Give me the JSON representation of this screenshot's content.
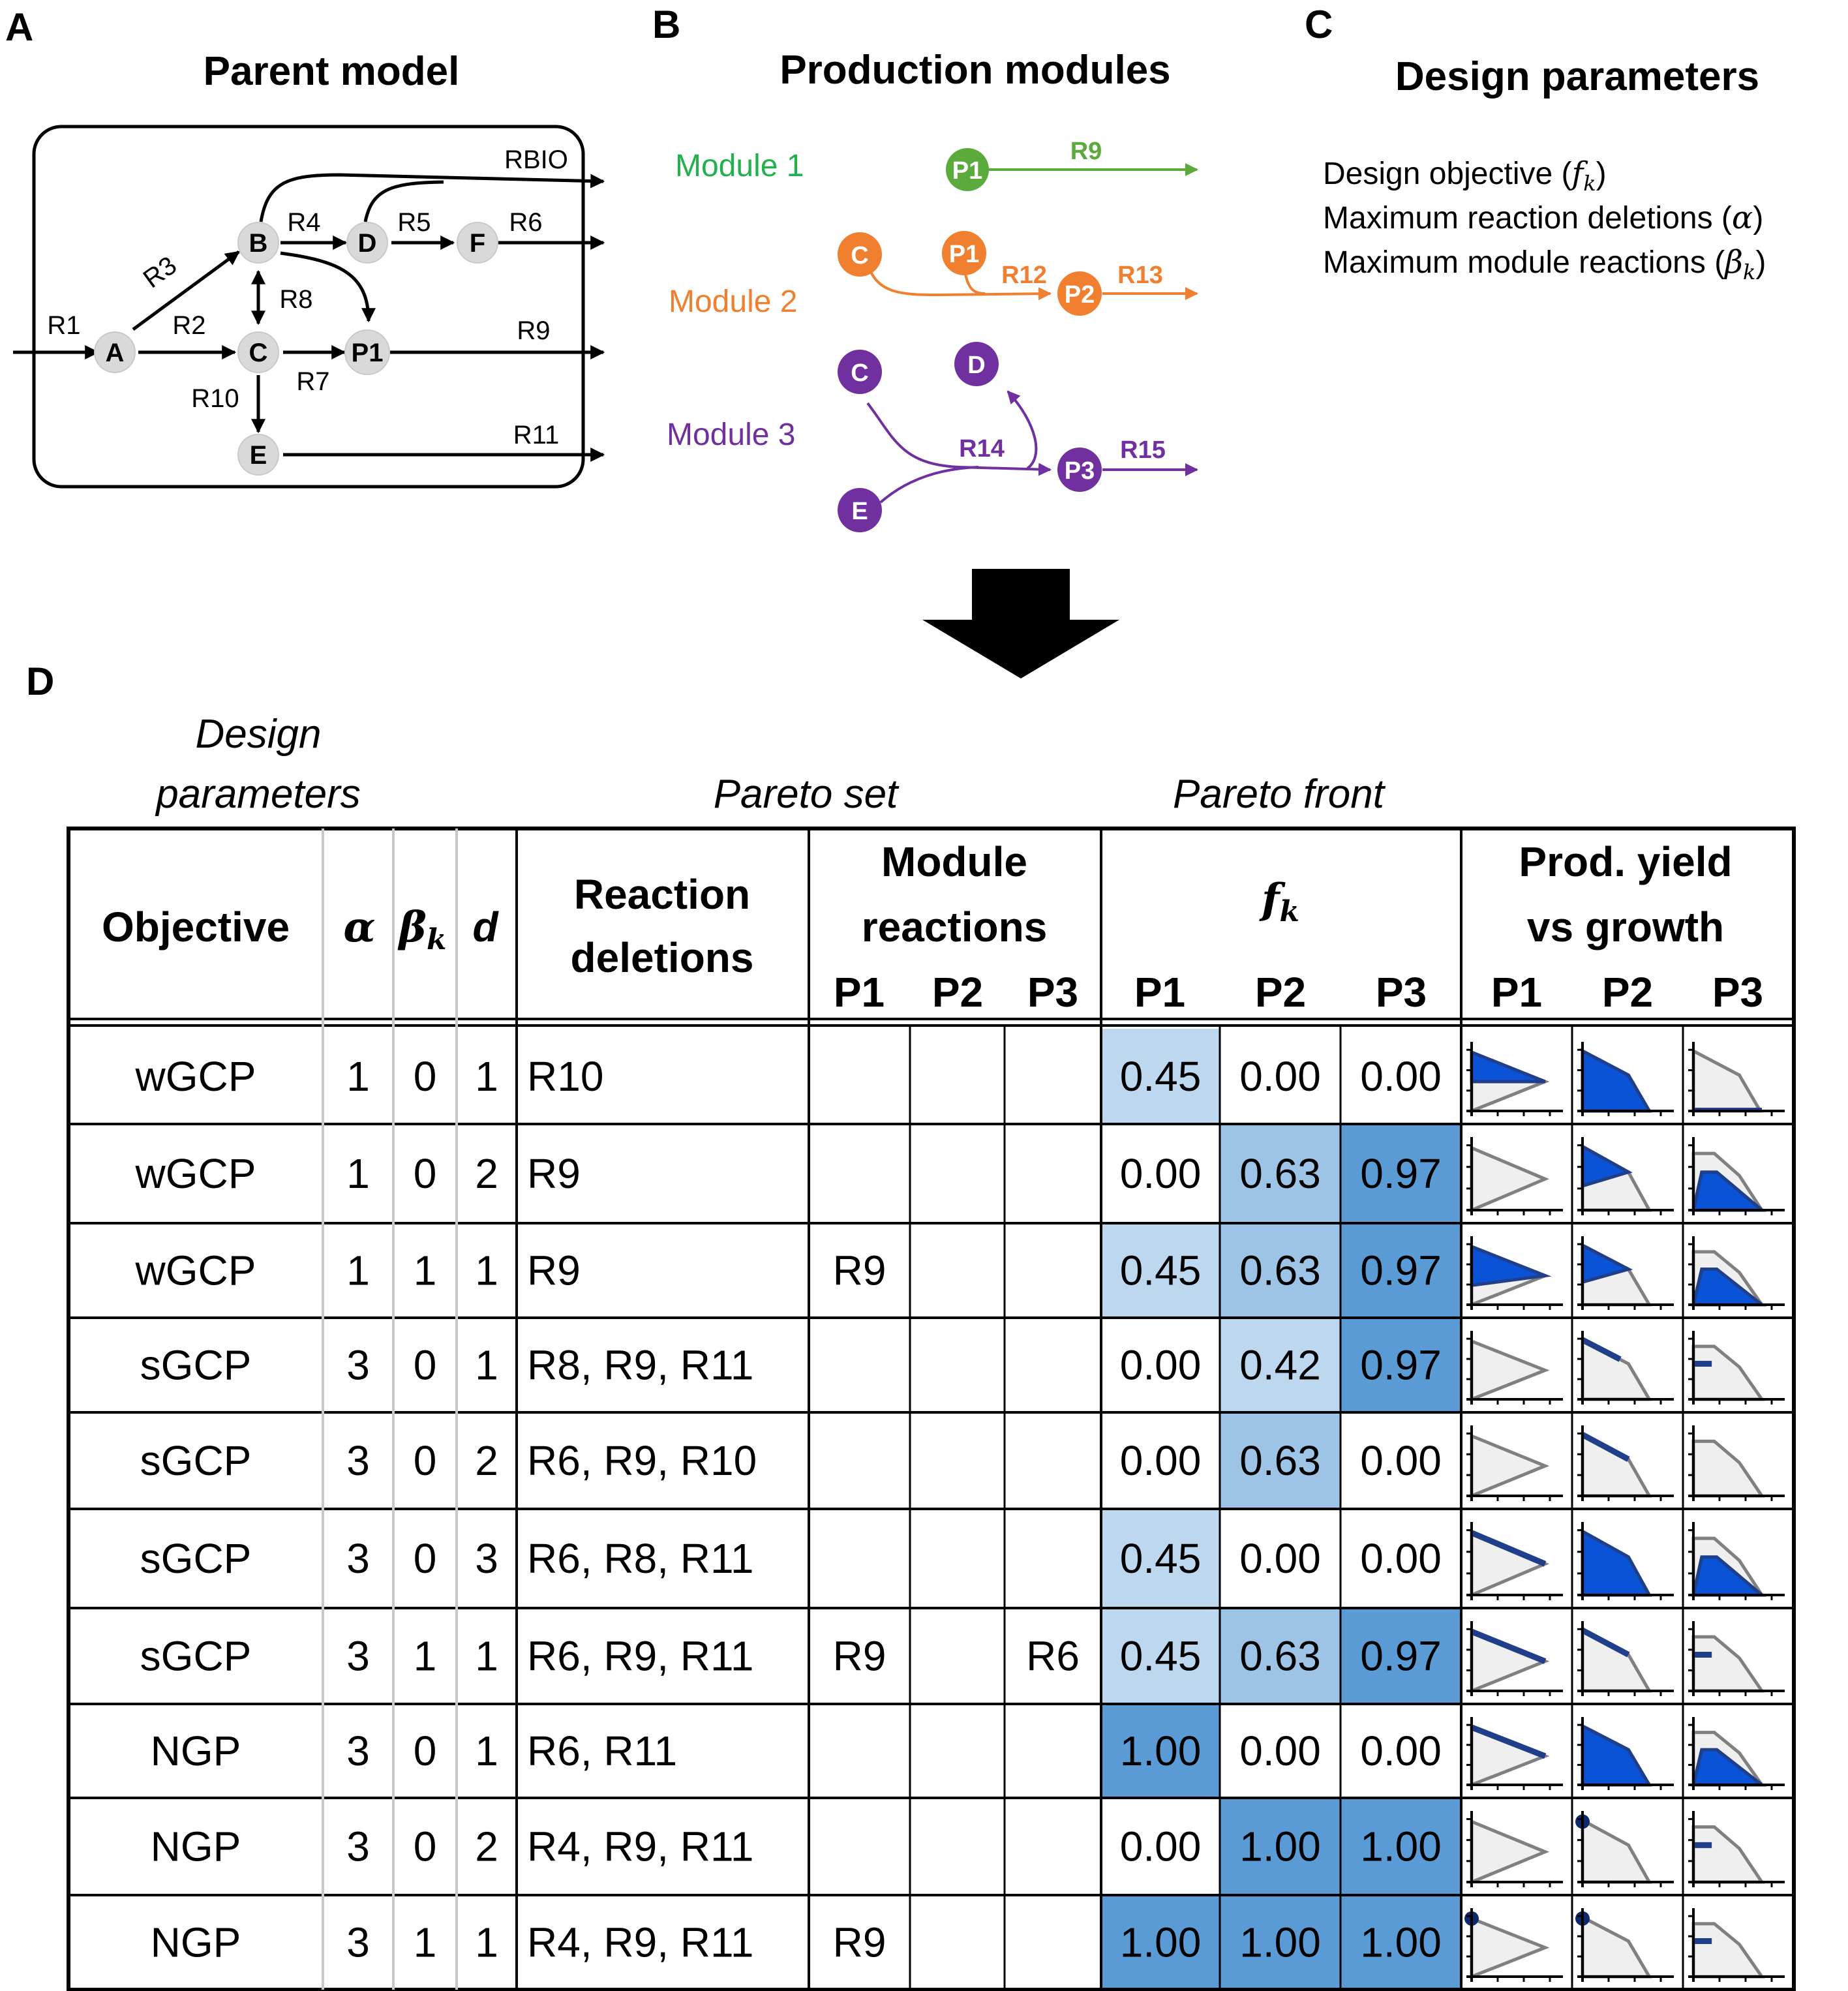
{
  "panelA": {
    "letter": "A",
    "title": "Parent model",
    "nodes": [
      "A",
      "B",
      "C",
      "D",
      "F",
      "P1",
      "E"
    ],
    "reactions": {
      "R1": "R1",
      "R2": "R2",
      "R3": "R3",
      "R4": "R4",
      "R5": "R5",
      "R6": "R6",
      "R7": "R7",
      "R8": "R8",
      "R9": "R9",
      "R10": "R10",
      "R11": "R11",
      "RBIO": "RBIO"
    }
  },
  "panelB": {
    "letter": "B",
    "title": "Production modules",
    "module1": {
      "label": "Module 1",
      "color": "#5aab3b",
      "nodes": [
        "P1"
      ],
      "reactions": [
        "R9"
      ]
    },
    "module2": {
      "label": "Module 2",
      "color": "#f07f30",
      "nodes": [
        "C",
        "P1",
        "P2"
      ],
      "reactions": [
        "R12",
        "R13"
      ]
    },
    "module3": {
      "label": "Module 3",
      "color": "#7030a0",
      "nodes": [
        "C",
        "D",
        "E",
        "P3"
      ],
      "reactions": [
        "R14",
        "R15"
      ]
    }
  },
  "panelC": {
    "letter": "C",
    "title": "Design parameters",
    "lines": {
      "objective": "Design objective (",
      "objective_sym": "f",
      "objective_sub": "k",
      "deletions": "Maximum reaction deletions (",
      "deletions_sym": "α",
      "module": "Maximum module reactions (",
      "module_sym": "β",
      "module_sub": "k",
      "close": ")"
    }
  },
  "panelD": {
    "letter": "D",
    "groups": {
      "design": "Design",
      "design2": "parameters",
      "pareto_set": "Pareto set",
      "pareto_front": "Pareto front"
    },
    "headers": {
      "objective": "Objective",
      "alpha": "α",
      "beta": "β",
      "beta_sub": "k",
      "d": "d",
      "deletions1": "Reaction",
      "deletions2": "deletions",
      "module1": "Module",
      "module2": "reactions",
      "fk": "f",
      "fk_sub": "k",
      "yield1": "Prod. yield",
      "yield2": "vs  growth",
      "p1": "P1",
      "p2": "P2",
      "p3": "P3"
    },
    "colors": {
      "light": "#bdd7ee",
      "mid": "#9dc3e6",
      "dark": "#5b9bd5",
      "fill_blue": "#0a52d6",
      "fill_grey": "#efefef"
    },
    "rows": [
      {
        "objective": "wGCP",
        "alpha": "1",
        "beta": "0",
        "d": "1",
        "deletions": "R10",
        "modules": [
          "",
          "",
          ""
        ],
        "f": [
          "0.45",
          "0.00",
          "0.00"
        ]
      },
      {
        "objective": "wGCP",
        "alpha": "1",
        "beta": "0",
        "d": "2",
        "deletions": "R9",
        "modules": [
          "",
          "",
          ""
        ],
        "f": [
          "0.00",
          "0.63",
          "0.97"
        ]
      },
      {
        "objective": "wGCP",
        "alpha": "1",
        "beta": "1",
        "d": "1",
        "deletions": "R9",
        "modules": [
          "R9",
          "",
          ""
        ],
        "f": [
          "0.45",
          "0.63",
          "0.97"
        ]
      },
      {
        "objective": "sGCP",
        "alpha": "3",
        "beta": "0",
        "d": "1",
        "deletions": "R8, R9, R11",
        "modules": [
          "",
          "",
          ""
        ],
        "f": [
          "0.00",
          "0.42",
          "0.97"
        ]
      },
      {
        "objective": "sGCP",
        "alpha": "3",
        "beta": "0",
        "d": "2",
        "deletions": "R6, R9, R10",
        "modules": [
          "",
          "",
          ""
        ],
        "f": [
          "0.00",
          "0.63",
          "0.00"
        ]
      },
      {
        "objective": "sGCP",
        "alpha": "3",
        "beta": "0",
        "d": "3",
        "deletions": "R6, R8, R11",
        "modules": [
          "",
          "",
          ""
        ],
        "f": [
          "0.45",
          "0.00",
          "0.00"
        ]
      },
      {
        "objective": "sGCP",
        "alpha": "3",
        "beta": "1",
        "d": "1",
        "deletions": "R6, R9, R11",
        "modules": [
          "R9",
          "",
          "R6"
        ],
        "f": [
          "0.45",
          "0.63",
          "0.97"
        ]
      },
      {
        "objective": "NGP",
        "alpha": "3",
        "beta": "0",
        "d": "1",
        "deletions": "R6, R11",
        "modules": [
          "",
          "",
          ""
        ],
        "f": [
          "1.00",
          "0.00",
          "0.00"
        ]
      },
      {
        "objective": "NGP",
        "alpha": "3",
        "beta": "0",
        "d": "2",
        "deletions": "R4, R9, R11",
        "modules": [
          "",
          "",
          ""
        ],
        "f": [
          "0.00",
          "1.00",
          "1.00"
        ]
      },
      {
        "objective": "NGP",
        "alpha": "3",
        "beta": "1",
        "d": "1",
        "deletions": "R4, R9, R11",
        "modules": [
          "R9",
          "",
          ""
        ],
        "f": [
          "1.00",
          "1.00",
          "1.00"
        ]
      }
    ]
  }
}
